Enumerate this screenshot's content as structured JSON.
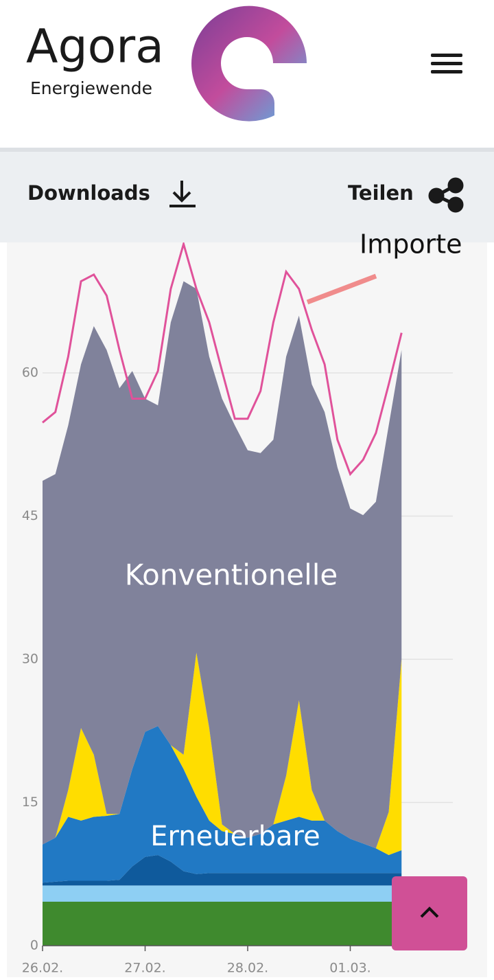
{
  "header": {
    "brand": "Agora",
    "tagline": "Energiewende"
  },
  "toolbar": {
    "downloads": "Downloads",
    "share": "Teilen"
  },
  "chart_data": {
    "type": "stacked-area",
    "x": [
      0,
      3,
      6,
      9,
      12,
      15,
      18,
      21,
      24,
      27,
      30,
      33,
      36,
      39,
      42,
      45,
      48,
      51,
      54,
      57,
      60,
      63,
      66,
      69,
      72,
      75,
      78,
      81,
      84
    ],
    "xlim": [
      0,
      96
    ],
    "xticks": [
      {
        "value": 0,
        "label": "26.02."
      },
      {
        "value": 24,
        "label": "27.02."
      },
      {
        "value": 48,
        "label": "28.02."
      },
      {
        "value": 72,
        "label": "01.03."
      }
    ],
    "ylim": [
      0,
      75
    ],
    "yticks": [
      0,
      15,
      30,
      45,
      60
    ],
    "grid": true,
    "series": [
      {
        "color": "#3f8a2e",
        "values": [
          4.6,
          4.6,
          4.6,
          4.6,
          4.6,
          4.6,
          4.6,
          4.6,
          4.6,
          4.6,
          4.6,
          4.6,
          4.6,
          4.6,
          4.6,
          4.6,
          4.6,
          4.6,
          4.6,
          4.6,
          4.6,
          4.6,
          4.6,
          4.6,
          4.6,
          4.6,
          4.6,
          4.6,
          4.6
        ]
      },
      {
        "color": "#8ecff3",
        "values": [
          1.7,
          1.7,
          1.7,
          1.7,
          1.7,
          1.7,
          1.7,
          1.7,
          1.7,
          1.7,
          1.7,
          1.7,
          1.7,
          1.7,
          1.7,
          1.7,
          1.7,
          1.7,
          1.7,
          1.7,
          1.7,
          1.7,
          1.7,
          1.7,
          1.7,
          1.7,
          1.7,
          1.7,
          1.7
        ]
      },
      {
        "color": "#0f5a9c",
        "values": [
          0.3,
          0.4,
          0.5,
          0.5,
          0.5,
          0.5,
          0.6,
          2.0,
          3.0,
          3.2,
          2.5,
          1.5,
          1.2,
          1.3,
          1.3,
          1.3,
          1.3,
          1.3,
          1.3,
          1.3,
          1.3,
          1.3,
          1.3,
          1.3,
          1.3,
          1.3,
          1.3,
          1.3,
          1.3
        ]
      },
      {
        "color": "#2179c4",
        "values": [
          4.0,
          4.6,
          6.7,
          6.3,
          6.7,
          6.8,
          6.9,
          10.2,
          13.1,
          13.5,
          12.2,
          10.7,
          8.1,
          5.5,
          4.4,
          4.1,
          3.7,
          4.1,
          5.1,
          5.5,
          5.9,
          5.5,
          5.5,
          4.4,
          3.6,
          3.1,
          2.6,
          1.9,
          2.4
        ]
      },
      {
        "color": "#ffdd00",
        "values": [
          0,
          0,
          2.8,
          9.7,
          6.5,
          0.2,
          0,
          0,
          0,
          0,
          0,
          1.5,
          15.1,
          9.7,
          0.7,
          0,
          0,
          0,
          0,
          4.7,
          12.2,
          3.2,
          0,
          0,
          0,
          0,
          0,
          4.5,
          20
        ]
      },
      {
        "name": "Konventionelle",
        "color": "#80829b",
        "values": [
          38.1,
          38.1,
          38.2,
          38.1,
          44.9,
          48.6,
          44.6,
          41.7,
          34.9,
          33.6,
          44.3,
          49.6,
          38.1,
          38.9,
          44.6,
          42.8,
          40.6,
          39.9,
          40.3,
          43.9,
          40.3,
          42.5,
          42.8,
          38.1,
          34.6,
          34.4,
          36.3,
          40.5,
          32.4
        ]
      }
    ],
    "line": {
      "name": "Importe",
      "color": "#e0529a",
      "values": [
        54.8,
        55.9,
        61.7,
        69.6,
        70.3,
        68.1,
        62.4,
        57.3,
        57.3,
        60.2,
        68.8,
        73.5,
        68.8,
        65.3,
        60.2,
        55.2,
        55.2,
        58.1,
        65.3,
        70.6,
        68.8,
        64.5,
        60.9,
        53.0,
        49.4,
        50.9,
        53.7,
        58.8,
        64.2
      ]
    },
    "annotations": [
      "Erneuerbare"
    ]
  }
}
